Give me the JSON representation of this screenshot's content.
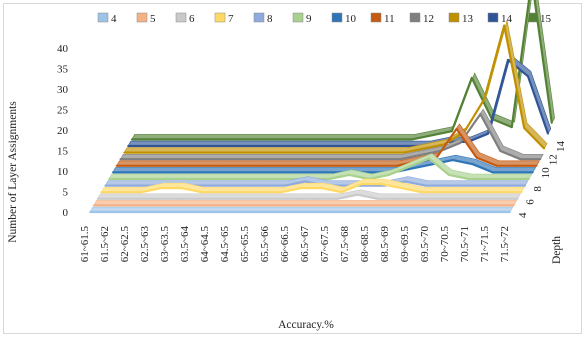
{
  "chart_data": {
    "type": "line",
    "subtype": "3d-line",
    "title": "",
    "xlabel": "Accuracy.%",
    "ylabel": "Number of Layer Assignments",
    "zlabel": "Depth",
    "ylim": [
      0,
      40
    ],
    "yticks": [
      "0",
      "5",
      "10",
      "15",
      "20",
      "25",
      "30",
      "35",
      "40"
    ],
    "depth_ticks": [
      "4",
      "6",
      "8",
      "10",
      "12",
      "14"
    ],
    "grid": false,
    "legend_position": "top",
    "categories": [
      "61~61.5",
      "61.5~62",
      "62~62.5",
      "62.5~63",
      "63~63.5",
      "63.5~64",
      "64~64.5",
      "64.5~65",
      "65~65.5",
      "65.5~66",
      "66~66.5",
      "66.5~67",
      "67~67.5",
      "67.5~68",
      "68~68.5",
      "68.5~69",
      "69~69.5",
      "69.5~70",
      "70~70.5",
      "70.5~71",
      "71~71.5",
      "71.5~72"
    ],
    "series": [
      {
        "name": "4",
        "color": "#9dc3e6",
        "values": [
          0,
          0,
          0,
          0,
          0,
          0,
          0,
          0,
          0,
          0,
          0,
          0,
          0,
          0,
          0,
          0,
          0,
          0,
          0,
          0,
          0,
          0
        ]
      },
      {
        "name": "5",
        "color": "#f4b183",
        "values": [
          0,
          0,
          0,
          0,
          0,
          0,
          0,
          0,
          0,
          0,
          0,
          0,
          0,
          0,
          0,
          0,
          0,
          0,
          0,
          0,
          0,
          0
        ]
      },
      {
        "name": "6",
        "color": "#c9c9c9",
        "values": [
          0,
          0,
          0,
          0,
          0,
          0,
          0,
          0,
          0,
          0,
          0,
          0,
          0,
          1,
          0,
          0,
          0,
          0,
          0,
          0,
          0,
          0
        ]
      },
      {
        "name": "7",
        "color": "#ffd966",
        "values": [
          0,
          0,
          0,
          1,
          1,
          0,
          0,
          0,
          0,
          0,
          1,
          1,
          0,
          2,
          2,
          1,
          0,
          0,
          0,
          0,
          0,
          0
        ]
      },
      {
        "name": "8",
        "color": "#8faadc",
        "values": [
          0,
          0,
          0,
          0,
          0,
          0,
          0,
          0,
          0,
          0,
          1,
          0,
          0,
          0,
          0,
          1,
          0,
          0,
          0,
          0,
          0,
          0
        ]
      },
      {
        "name": "9",
        "color": "#a9d18e",
        "values": [
          0,
          0,
          0,
          0,
          0,
          0,
          0,
          0,
          0,
          0,
          0,
          0,
          1,
          0,
          1,
          3,
          5,
          1,
          0,
          0,
          0,
          0
        ]
      },
      {
        "name": "10",
        "color": "#2e75b6",
        "values": [
          0,
          0,
          0,
          0,
          0,
          0,
          0,
          0,
          0,
          0,
          0,
          0,
          0,
          0,
          0,
          1,
          2,
          3,
          2,
          0,
          0,
          0
        ]
      },
      {
        "name": "11",
        "color": "#c55a11",
        "values": [
          0,
          0,
          0,
          0,
          0,
          0,
          0,
          0,
          0,
          0,
          0,
          0,
          0,
          0,
          0,
          1,
          2,
          9,
          2,
          0,
          0,
          0
        ]
      },
      {
        "name": "12",
        "color": "#7f7f7f",
        "values": [
          0,
          0,
          0,
          0,
          0,
          0,
          0,
          0,
          0,
          0,
          0,
          0,
          0,
          0,
          0,
          1,
          2,
          4,
          11,
          2,
          0,
          0
        ]
      },
      {
        "name": "13",
        "color": "#bf9000",
        "values": [
          0,
          0,
          0,
          0,
          0,
          0,
          0,
          0,
          0,
          0,
          0,
          0,
          0,
          0,
          0,
          1,
          2,
          5,
          13,
          31,
          6,
          1
        ]
      },
      {
        "name": "14",
        "color": "#2f5597",
        "values": [
          0,
          0,
          0,
          0,
          0,
          0,
          0,
          0,
          0,
          0,
          0,
          0,
          0,
          0,
          0,
          0,
          1,
          1,
          3,
          21,
          17,
          3
        ]
      },
      {
        "name": "15",
        "color": "#548235",
        "values": [
          0,
          0,
          0,
          0,
          0,
          0,
          0,
          0,
          0,
          0,
          0,
          0,
          0,
          0,
          0,
          1,
          2,
          15,
          5,
          3,
          39,
          4
        ]
      }
    ]
  }
}
